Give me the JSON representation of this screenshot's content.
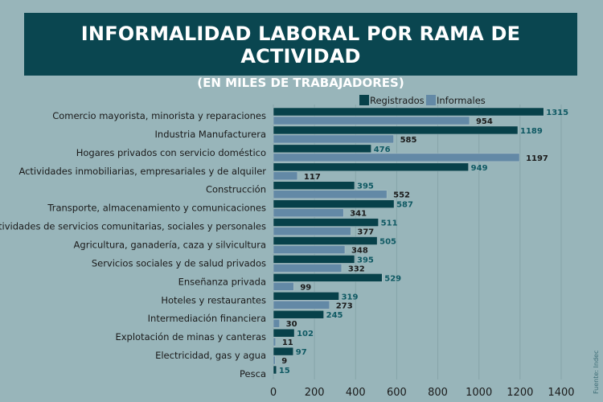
{
  "chart_data": {
    "type": "bar",
    "orientation": "horizontal",
    "title": "INFORMALIDAD LABORAL POR RAMA DE ACTIVIDAD",
    "subtitle": "(EN MILES DE TRABAJADORES)",
    "source": "Fuente: Indec",
    "categories": [
      "Comercio mayorista, minorista y reparaciones",
      "Industria Manufacturera",
      "Hogares privados con servicio doméstico",
      "Actividades inmobiliarias, empresariales y de alquiler",
      "Construcción",
      "Transporte, almacenamiento y comunicaciones",
      "Otras actividades de servicios comunitarias, sociales y personales",
      "Agricultura, ganadería, caza y silvicultura",
      "Servicios sociales y de salud privados",
      "Enseñanza privada",
      "Hoteles y restaurantes",
      "Intermediación financiera",
      "Explotación de minas y canteras",
      "Electricidad, gas y agua",
      "Pesca"
    ],
    "series": [
      {
        "name": "Registrados",
        "color": "#07414a",
        "label_color": "#0f5963",
        "values": [
          1315,
          1189,
          476,
          949,
          395,
          587,
          511,
          505,
          395,
          529,
          319,
          245,
          102,
          97,
          15
        ]
      },
      {
        "name": "Informales",
        "color": "#6389a6",
        "label_color": "#1a1a1a",
        "values": [
          954,
          585,
          1197,
          117,
          552,
          341,
          377,
          348,
          332,
          99,
          273,
          30,
          11,
          9,
          null
        ]
      }
    ],
    "xlim": [
      0,
      1500
    ],
    "xticks": [
      0,
      200,
      400,
      600,
      800,
      1000,
      1200,
      1400
    ],
    "grid": true,
    "legend": "top"
  }
}
